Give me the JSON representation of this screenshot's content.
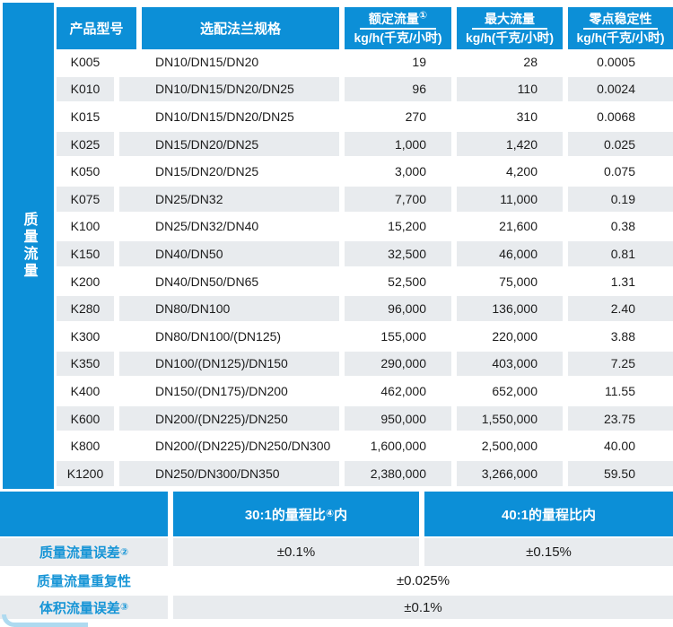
{
  "colors": {
    "accent_blue": "#0c8fd7",
    "row_gray": "#e8ebee",
    "label_blue": "#1795d6",
    "corner_light_blue": "#aedaf0",
    "text": "#1c1c1c"
  },
  "sidebar": {
    "label": "质量流量"
  },
  "table": {
    "headers": {
      "model": "产品型号",
      "flange": "选配法兰规格",
      "rated_top": "额定流量",
      "rated_sup": "①",
      "rated_unit": "kg/h(千克/小时)",
      "max_top": "最大流量",
      "max_unit": "kg/h(千克/小时)",
      "zero_top": "零点稳定性",
      "zero_unit": "kg/h(千克/小时)"
    },
    "rows": [
      {
        "model": "K005",
        "flange": "DN10/DN15/DN20",
        "rated": "19",
        "max": "28",
        "zero": "0.0005"
      },
      {
        "model": "K010",
        "flange": "DN10/DN15/DN20/DN25",
        "rated": "96",
        "max": "110",
        "zero": "0.0024"
      },
      {
        "model": "K015",
        "flange": "DN10/DN15/DN20/DN25",
        "rated": "270",
        "max": "310",
        "zero": "0.0068"
      },
      {
        "model": "K025",
        "flange": "DN15/DN20/DN25",
        "rated": "1,000",
        "max": "1,420",
        "zero": "0.025"
      },
      {
        "model": "K050",
        "flange": "DN15/DN20/DN25",
        "rated": "3,000",
        "max": "4,200",
        "zero": "0.075"
      },
      {
        "model": "K075",
        "flange": "DN25/DN32",
        "rated": "7,700",
        "max": "11,000",
        "zero": "0.19"
      },
      {
        "model": "K100",
        "flange": "DN25/DN32/DN40",
        "rated": "15,200",
        "max": "21,600",
        "zero": "0.38"
      },
      {
        "model": "K150",
        "flange": "DN40/DN50",
        "rated": "32,500",
        "max": "46,000",
        "zero": "0.81"
      },
      {
        "model": "K200",
        "flange": "DN40/DN50/DN65",
        "rated": "52,500",
        "max": "75,000",
        "zero": "1.31"
      },
      {
        "model": "K280",
        "flange": "DN80/DN100",
        "rated": "96,000",
        "max": "136,000",
        "zero": "2.40"
      },
      {
        "model": "K300",
        "flange": "DN80/DN100/(DN125)",
        "rated": "155,000",
        "max": "220,000",
        "zero": "3.88"
      },
      {
        "model": "K350",
        "flange": "DN100/(DN125)/DN150",
        "rated": "290,000",
        "max": "403,000",
        "zero": "7.25"
      },
      {
        "model": "K400",
        "flange": "DN150/(DN175)/DN200",
        "rated": "462,000",
        "max": "652,000",
        "zero": "11.55"
      },
      {
        "model": "K600",
        "flange": "DN200/(DN225)/DN250",
        "rated": "950,000",
        "max": "1,550,000",
        "zero": "23.75"
      },
      {
        "model": "K800",
        "flange": "DN200/(DN225)/DN250/DN300",
        "rated": "1,600,000",
        "max": "2,500,000",
        "zero": "40.00"
      },
      {
        "model": "K1200",
        "flange": "DN250/DN300/DN350",
        "rated": "2,380,000",
        "max": "3,266,000",
        "zero": "59.50"
      }
    ]
  },
  "bottom": {
    "band": {
      "range30_prefix": "30:1的量程比",
      "range30_sup": "④",
      "range30_suffix": "内",
      "range40": "40:1的量程比内"
    },
    "rows": [
      {
        "label": "质量流量误差",
        "sup": "②",
        "v1": "±0.1%",
        "v2": "±0.15%"
      },
      {
        "label": "质量流量重复性",
        "sup": "",
        "v1": "±0.025%",
        "v2": ""
      },
      {
        "label": "体积流量误差",
        "sup": "③",
        "v1": "±0.1%",
        "v2": ""
      }
    ]
  }
}
